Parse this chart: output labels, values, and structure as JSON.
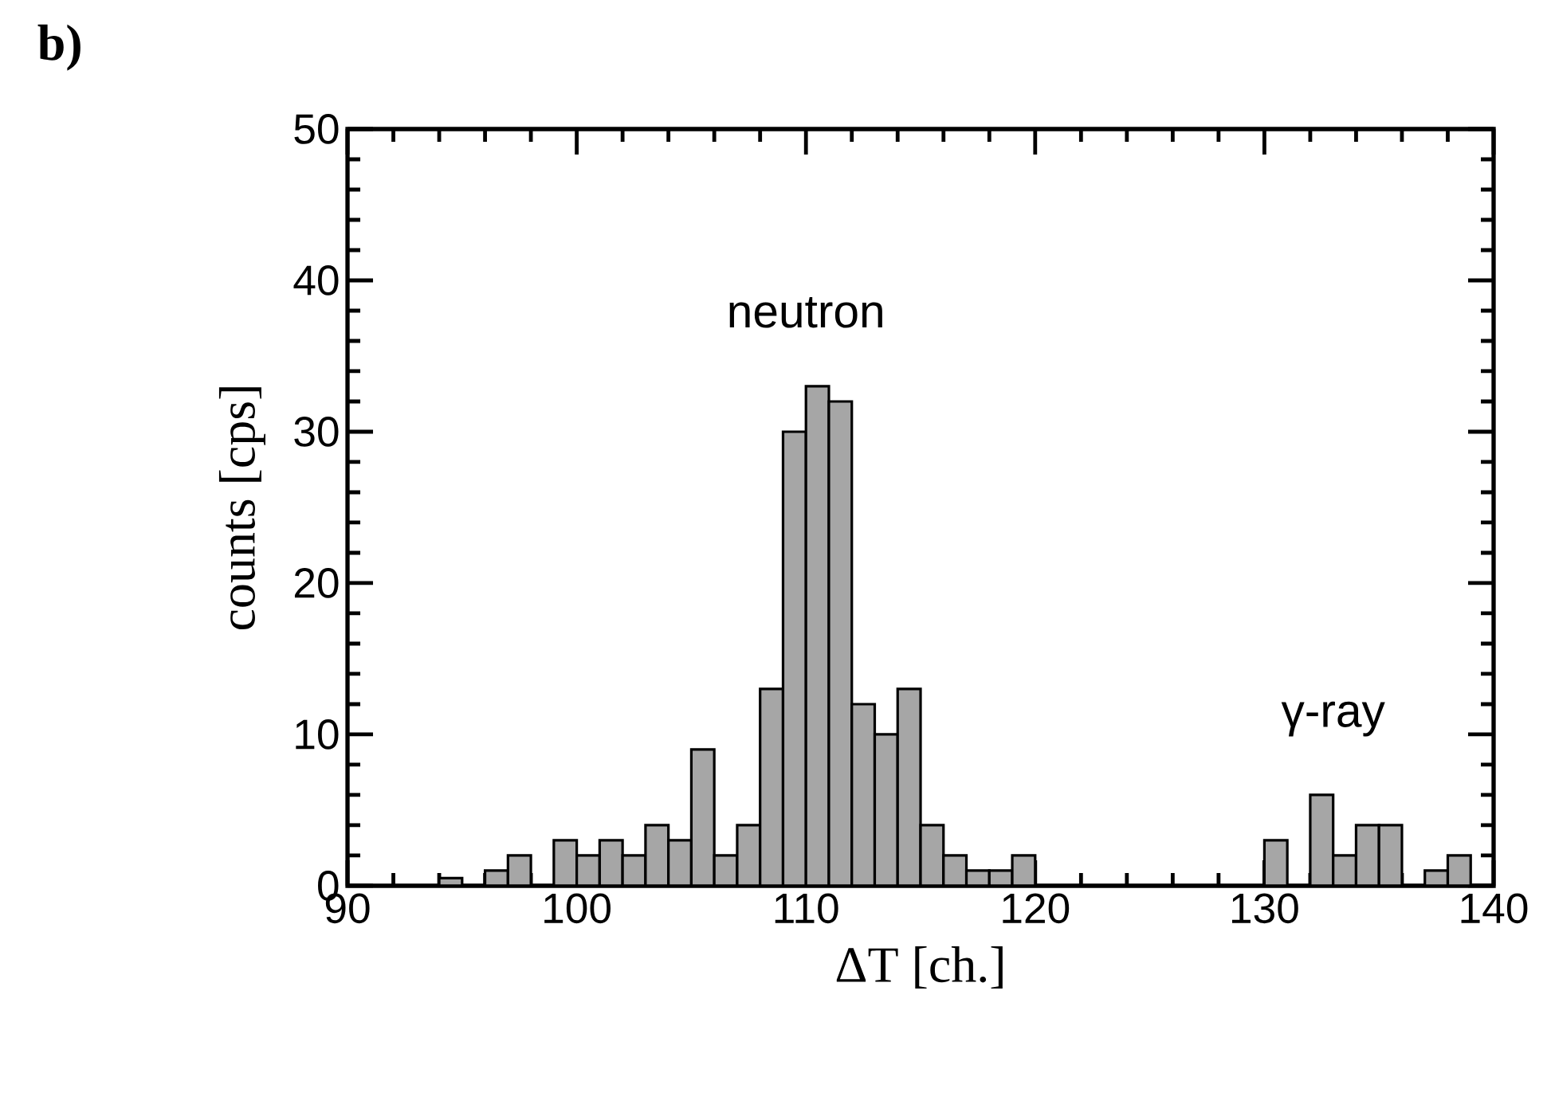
{
  "chart_data": {
    "type": "histogram",
    "title": "b)",
    "xlabel": "ΔT [ch.]",
    "ylabel": "counts [cps]",
    "bins": [
      90,
      91,
      92,
      93,
      94,
      95,
      96,
      97,
      98,
      99,
      100,
      101,
      102,
      103,
      104,
      105,
      106,
      107,
      108,
      109,
      110,
      111,
      112,
      113,
      114,
      115,
      116,
      117,
      118,
      119,
      120,
      121,
      122,
      123,
      124,
      125,
      126,
      127,
      128,
      129,
      130,
      131,
      132,
      133,
      134,
      135,
      136,
      137,
      138,
      139,
      140
    ],
    "values": [
      0,
      0,
      0,
      0,
      0.5,
      0,
      1,
      2,
      0,
      3,
      2,
      3,
      2,
      4,
      3,
      9,
      2,
      4,
      13,
      30,
      33,
      32,
      12,
      10,
      13,
      4,
      2,
      1,
      1,
      2,
      0,
      0,
      0,
      0,
      0,
      0,
      0,
      0,
      0,
      0,
      3,
      0,
      6,
      2,
      4,
      4,
      0,
      1,
      2,
      0
    ],
    "color": "#a6a6a6",
    "xlim": [
      90,
      140
    ],
    "ylim": [
      0,
      50
    ],
    "xticks": [
      90,
      100,
      110,
      120,
      130,
      140
    ],
    "yticks": [
      0,
      10,
      20,
      30,
      40,
      50
    ],
    "annotations": [
      {
        "text": "neutron",
        "x": 110,
        "y": 33
      },
      {
        "text": "γ-ray",
        "x": 133,
        "y": 6
      }
    ]
  }
}
